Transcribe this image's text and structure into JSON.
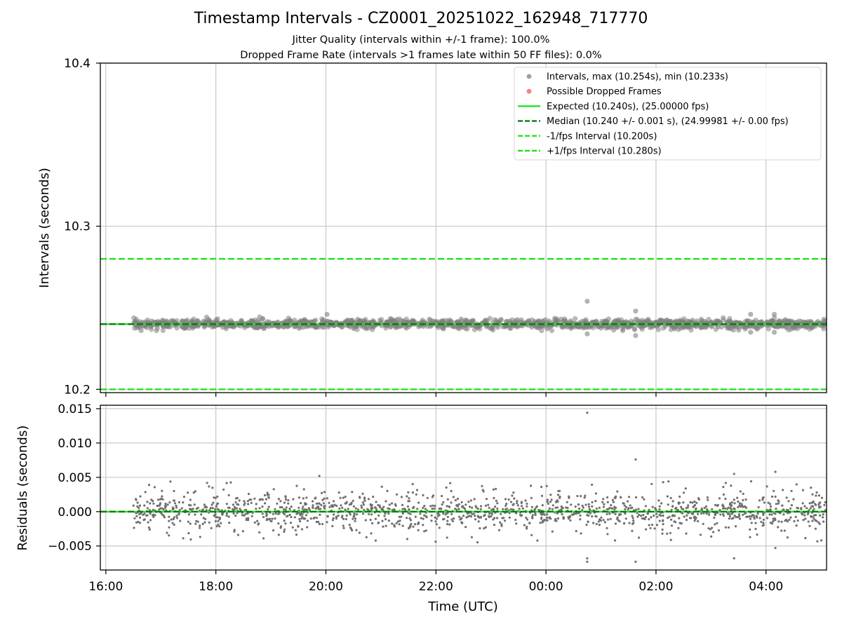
{
  "chart_data": [
    {
      "type": "scatter",
      "title": "Timestamp Intervals - CZ0001_20251022_162948_717770",
      "subtitles": [
        "Jitter Quality (intervals within +/-1 frame): 100.0%",
        "Dropped Frame Rate (intervals >1 frames late within 50 FF files): 0.0%"
      ],
      "xlabel": "",
      "ylabel": "Intervals (seconds)",
      "xlim_hours": [
        15.9,
        29.1
      ],
      "ylim": [
        10.198,
        10.4
      ],
      "y_ticks": [
        10.2,
        10.3,
        10.4
      ],
      "y_tick_labels": [
        "10.2",
        "10.3",
        "10.4"
      ],
      "grid": true,
      "legend_position": "top-right",
      "data_range_hours": [
        16.5,
        29.1
      ],
      "outliers": [
        {
          "x": 20.02,
          "y": 10.246
        },
        {
          "x": 24.75,
          "y": 10.254
        },
        {
          "x": 24.75,
          "y": 10.234
        },
        {
          "x": 25.63,
          "y": 10.248
        },
        {
          "x": 25.63,
          "y": 10.233
        },
        {
          "x": 27.72,
          "y": 10.246
        },
        {
          "x": 27.72,
          "y": 10.235
        },
        {
          "x": 28.15,
          "y": 10.246
        },
        {
          "x": 28.15,
          "y": 10.235
        }
      ],
      "series": [
        {
          "name": "Intervals",
          "label": "Intervals, max (10.254s), min (10.233s)",
          "kind": "scatter",
          "color": "#808080",
          "max": 10.254,
          "min": 10.233
        },
        {
          "name": "Possible Dropped Frames",
          "label": "Possible Dropped Frames",
          "kind": "scatter",
          "color": "#ef5a5a"
        },
        {
          "name": "Expected",
          "label": "Expected (10.240s), (25.00000 fps)",
          "kind": "line",
          "style": "solid",
          "color": "#1fe61f",
          "value": 10.24
        },
        {
          "name": "Median",
          "label": "Median (10.240 +/- 0.001 s), (24.99981 +/- 0.00 fps)",
          "kind": "line",
          "style": "dashed",
          "color": "#0a7a0a",
          "value": 10.24
        },
        {
          "name": "-1/fps Interval",
          "label": "-1/fps Interval (10.200s)",
          "kind": "line",
          "style": "dashed",
          "color": "#1fe61f",
          "value": 10.2
        },
        {
          "name": "+1/fps Interval",
          "label": "+1/fps Interval (10.280s)",
          "kind": "line",
          "style": "dashed",
          "color": "#1fe61f",
          "value": 10.28
        }
      ]
    },
    {
      "type": "scatter",
      "title": "",
      "xlabel": "Time (UTC)",
      "ylabel": "Residuals (seconds)",
      "xlim_hours": [
        15.9,
        29.1
      ],
      "ylim": [
        -0.0085,
        0.0155
      ],
      "y_ticks": [
        -0.005,
        0.0,
        0.005,
        0.01,
        0.015
      ],
      "y_tick_labels": [
        "−0.005",
        "0.000",
        "0.005",
        "0.010",
        "0.015"
      ],
      "x_ticks_hours": [
        16,
        18,
        20,
        22,
        24,
        26,
        28
      ],
      "x_tick_labels": [
        "16:00",
        "18:00",
        "20:00",
        "22:00",
        "00:00",
        "02:00",
        "04:00"
      ],
      "grid": true,
      "data_range_hours": [
        16.5,
        29.1
      ],
      "outliers": [
        {
          "x": 19.88,
          "y": 0.0052
        },
        {
          "x": 24.75,
          "y": 0.0144
        },
        {
          "x": 24.75,
          "y": -0.0068
        },
        {
          "x": 24.75,
          "y": -0.0073
        },
        {
          "x": 25.63,
          "y": 0.0076
        },
        {
          "x": 25.63,
          "y": -0.0073
        },
        {
          "x": 27.42,
          "y": 0.0055
        },
        {
          "x": 27.42,
          "y": -0.0068
        },
        {
          "x": 28.17,
          "y": 0.0058
        },
        {
          "x": 28.17,
          "y": -0.0053
        }
      ],
      "series": [
        {
          "name": "Residuals",
          "kind": "scatter",
          "color": "#707070"
        },
        {
          "name": "Zero line",
          "kind": "line",
          "style": "solid",
          "color": "#1fe61f",
          "value": 0.0
        },
        {
          "name": "Median residual",
          "kind": "line",
          "style": "dashed",
          "color": "#0a7a0a",
          "value": 0.0
        }
      ]
    }
  ]
}
